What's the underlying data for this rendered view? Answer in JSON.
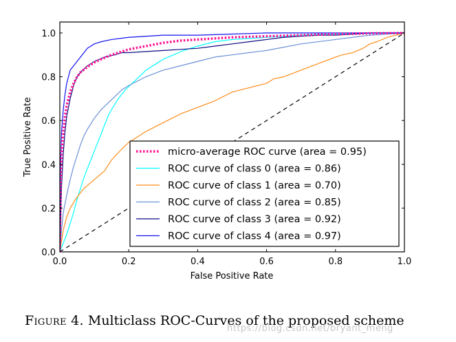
{
  "chart_data": {
    "type": "line",
    "xlabel": "False Positive Rate",
    "ylabel": "True Positive Rate",
    "xlim": [
      0.0,
      1.0
    ],
    "ylim": [
      0.0,
      1.05
    ],
    "xticks": [
      "0.0",
      "0.2",
      "0.4",
      "0.6",
      "0.8",
      "1.0"
    ],
    "yticks": [
      "0.0",
      "0.2",
      "0.4",
      "0.6",
      "0.8",
      "1.0"
    ],
    "legend_position": "lower-right",
    "chance_line": {
      "x": [
        0,
        1
      ],
      "y": [
        0,
        1
      ],
      "style": "dashed",
      "color": "#000000"
    },
    "series": [
      {
        "name": "micro-average ROC curve (area = 0.95)",
        "color": "#ff1493",
        "style": "dotted",
        "x": [
          0,
          0.002,
          0.005,
          0.01,
          0.015,
          0.02,
          0.03,
          0.04,
          0.05,
          0.06,
          0.08,
          0.1,
          0.12,
          0.15,
          0.18,
          0.2,
          0.25,
          0.3,
          0.35,
          0.4,
          0.5,
          0.6,
          0.7,
          0.8,
          0.9,
          1.0
        ],
        "y": [
          0.0,
          0.3,
          0.45,
          0.55,
          0.62,
          0.67,
          0.73,
          0.77,
          0.8,
          0.82,
          0.845,
          0.865,
          0.88,
          0.9,
          0.915,
          0.925,
          0.94,
          0.955,
          0.965,
          0.97,
          0.98,
          0.985,
          0.99,
          0.995,
          0.998,
          1.0
        ]
      },
      {
        "name": "ROC curve of class 0 (area = 0.86)",
        "color": "#00ffff",
        "style": "solid",
        "x": [
          0,
          0.01,
          0.02,
          0.03,
          0.04,
          0.05,
          0.06,
          0.07,
          0.08,
          0.09,
          0.1,
          0.11,
          0.12,
          0.13,
          0.14,
          0.15,
          0.17,
          0.19,
          0.21,
          0.23,
          0.25,
          0.28,
          0.3,
          0.33,
          0.36,
          0.4,
          0.45,
          0.5,
          0.6,
          0.7,
          0.8,
          0.9,
          1.0
        ],
        "y": [
          0,
          0.04,
          0.08,
          0.13,
          0.18,
          0.24,
          0.29,
          0.34,
          0.38,
          0.42,
          0.46,
          0.5,
          0.54,
          0.58,
          0.62,
          0.65,
          0.7,
          0.74,
          0.77,
          0.8,
          0.83,
          0.86,
          0.88,
          0.9,
          0.92,
          0.94,
          0.96,
          0.97,
          0.98,
          0.99,
          0.995,
          0.998,
          1.0
        ]
      },
      {
        "name": "ROC curve of class 1 (area = 0.70)",
        "color": "#ff8c1a",
        "style": "solid",
        "x": [
          0,
          0.005,
          0.01,
          0.02,
          0.03,
          0.05,
          0.07,
          0.1,
          0.13,
          0.15,
          0.18,
          0.2,
          0.25,
          0.3,
          0.35,
          0.4,
          0.45,
          0.5,
          0.55,
          0.6,
          0.62,
          0.65,
          0.7,
          0.75,
          0.8,
          0.82,
          0.85,
          0.88,
          0.9,
          0.92,
          0.95,
          1.0
        ],
        "y": [
          0,
          0.05,
          0.1,
          0.16,
          0.2,
          0.25,
          0.29,
          0.33,
          0.37,
          0.42,
          0.47,
          0.5,
          0.55,
          0.59,
          0.63,
          0.66,
          0.69,
          0.73,
          0.75,
          0.77,
          0.79,
          0.8,
          0.83,
          0.86,
          0.89,
          0.9,
          0.91,
          0.93,
          0.95,
          0.96,
          0.98,
          1.0
        ]
      },
      {
        "name": "ROC curve of class 2 (area = 0.85)",
        "color": "#6a8fd6",
        "style": "solid",
        "x": [
          0,
          0.005,
          0.01,
          0.02,
          0.03,
          0.04,
          0.05,
          0.06,
          0.07,
          0.08,
          0.1,
          0.12,
          0.14,
          0.16,
          0.18,
          0.2,
          0.25,
          0.3,
          0.35,
          0.4,
          0.45,
          0.5,
          0.55,
          0.6,
          0.7,
          0.8,
          0.9,
          1.0
        ],
        "y": [
          0,
          0.1,
          0.18,
          0.26,
          0.33,
          0.39,
          0.44,
          0.49,
          0.53,
          0.56,
          0.61,
          0.65,
          0.68,
          0.71,
          0.74,
          0.76,
          0.8,
          0.83,
          0.85,
          0.87,
          0.89,
          0.9,
          0.91,
          0.92,
          0.95,
          0.97,
          0.99,
          1.0
        ]
      },
      {
        "name": "ROC curve of class 3 (area = 0.92)",
        "color": "#0a0a80",
        "style": "solid",
        "x": [
          0,
          0.005,
          0.01,
          0.015,
          0.02,
          0.03,
          0.04,
          0.05,
          0.06,
          0.08,
          0.1,
          0.13,
          0.16,
          0.18,
          0.2,
          0.3,
          0.4,
          0.45,
          0.5,
          0.55,
          0.6,
          0.65,
          0.7,
          0.75,
          0.8,
          0.85,
          0.9,
          1.0
        ],
        "y": [
          0,
          0.3,
          0.45,
          0.55,
          0.62,
          0.7,
          0.76,
          0.8,
          0.82,
          0.85,
          0.87,
          0.89,
          0.9,
          0.91,
          0.91,
          0.92,
          0.93,
          0.94,
          0.95,
          0.96,
          0.97,
          0.98,
          0.985,
          0.99,
          0.99,
          0.995,
          1.0,
          1.0
        ]
      },
      {
        "name": "ROC curve of class 4 (area = 0.97)",
        "color": "#1010ee",
        "style": "solid",
        "x": [
          0,
          0.002,
          0.005,
          0.01,
          0.015,
          0.02,
          0.025,
          0.03,
          0.04,
          0.05,
          0.06,
          0.07,
          0.08,
          0.09,
          0.1,
          0.12,
          0.15,
          0.2,
          0.3,
          0.4,
          0.5,
          0.6,
          0.7,
          0.8,
          0.9,
          1.0
        ],
        "y": [
          0,
          0.4,
          0.55,
          0.65,
          0.72,
          0.77,
          0.8,
          0.83,
          0.85,
          0.87,
          0.89,
          0.91,
          0.93,
          0.94,
          0.95,
          0.96,
          0.97,
          0.98,
          0.99,
          0.99,
          0.995,
          1.0,
          1.0,
          1.0,
          1.0,
          1.0
        ]
      }
    ]
  },
  "caption": {
    "label": "Figure 4.",
    "text": "Multiclass ROC-Curves of the proposed scheme"
  },
  "watermark": "https://blog.csdn.net/bryant_meng"
}
